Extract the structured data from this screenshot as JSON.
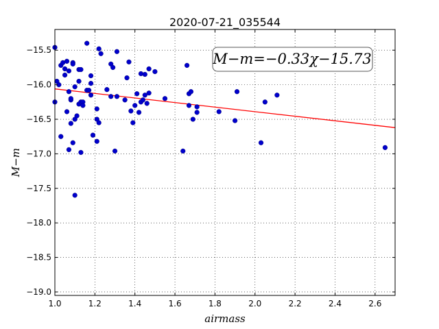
{
  "chart_data": {
    "type": "scatter",
    "title": "2020-07-21_035544",
    "xlabel": "airmass",
    "ylabel": "M−m",
    "xlim": [
      1.0,
      2.7
    ],
    "ylim": [
      -19.05,
      -15.2
    ],
    "x_ticks": [
      1.0,
      1.2,
      1.4,
      1.6,
      1.8,
      2.0,
      2.2,
      2.4,
      2.6
    ],
    "x_tick_labels": [
      "1.0",
      "1.2",
      "1.4",
      "1.6",
      "1.8",
      "2.0",
      "2.2",
      "2.4",
      "2.6"
    ],
    "y_ticks": [
      -15.5,
      -16.0,
      -16.5,
      -17.0,
      -17.5,
      -18.0,
      -18.5,
      -19.0
    ],
    "y_tick_labels": [
      "−15.5",
      "−16.0",
      "−16.5",
      "−17.0",
      "−17.5",
      "−18.0",
      "−18.5",
      "−19.0"
    ],
    "grid": true,
    "annotation": "M−m=−0.33χ−15.73",
    "fit": {
      "slope": -0.33,
      "intercept": -15.73,
      "color": "#ff0000"
    },
    "point_color": "#0000cc",
    "points": [
      [
        1.0,
        -15.46
      ],
      [
        1.0,
        -16.25
      ],
      [
        1.01,
        -15.95
      ],
      [
        1.02,
        -16.0
      ],
      [
        1.03,
        -15.72
      ],
      [
        1.03,
        -16.75
      ],
      [
        1.04,
        -15.68
      ],
      [
        1.05,
        -15.77
      ],
      [
        1.05,
        -15.86
      ],
      [
        1.06,
        -16.39
      ],
      [
        1.06,
        -15.66
      ],
      [
        1.07,
        -16.1
      ],
      [
        1.07,
        -16.94
      ],
      [
        1.07,
        -15.8
      ],
      [
        1.08,
        -16.22
      ],
      [
        1.08,
        -16.2
      ],
      [
        1.08,
        -16.56
      ],
      [
        1.09,
        -16.84
      ],
      [
        1.09,
        -15.68
      ],
      [
        1.09,
        -15.7
      ],
      [
        1.1,
        -16.03
      ],
      [
        1.1,
        -17.6
      ],
      [
        1.1,
        -16.5
      ],
      [
        1.11,
        -16.45
      ],
      [
        1.12,
        -15.78
      ],
      [
        1.12,
        -15.95
      ],
      [
        1.12,
        -16.28
      ],
      [
        1.13,
        -16.98
      ],
      [
        1.13,
        -15.78
      ],
      [
        1.13,
        -16.25
      ],
      [
        1.14,
        -16.25
      ],
      [
        1.14,
        -16.3
      ],
      [
        1.16,
        -15.4
      ],
      [
        1.16,
        -16.08
      ],
      [
        1.17,
        -16.08
      ],
      [
        1.18,
        -15.87
      ],
      [
        1.18,
        -15.98
      ],
      [
        1.18,
        -16.15
      ],
      [
        1.19,
        -16.73
      ],
      [
        1.21,
        -16.35
      ],
      [
        1.21,
        -16.5
      ],
      [
        1.21,
        -16.82
      ],
      [
        1.22,
        -16.55
      ],
      [
        1.22,
        -15.48
      ],
      [
        1.23,
        -15.55
      ],
      [
        1.26,
        -16.07
      ],
      [
        1.28,
        -15.7
      ],
      [
        1.28,
        -16.17
      ],
      [
        1.29,
        -15.75
      ],
      [
        1.3,
        -16.96
      ],
      [
        1.31,
        -15.52
      ],
      [
        1.31,
        -16.17
      ],
      [
        1.35,
        -16.22
      ],
      [
        1.36,
        -15.9
      ],
      [
        1.37,
        -15.67
      ],
      [
        1.38,
        -16.38
      ],
      [
        1.39,
        -16.55
      ],
      [
        1.4,
        -16.3
      ],
      [
        1.41,
        -16.13
      ],
      [
        1.42,
        -16.4
      ],
      [
        1.43,
        -15.84
      ],
      [
        1.43,
        -16.25
      ],
      [
        1.44,
        -16.22
      ],
      [
        1.45,
        -15.85
      ],
      [
        1.45,
        -16.15
      ],
      [
        1.46,
        -16.27
      ],
      [
        1.47,
        -15.77
      ],
      [
        1.47,
        -16.12
      ],
      [
        1.5,
        -15.81
      ],
      [
        1.55,
        -16.2
      ],
      [
        1.64,
        -16.96
      ],
      [
        1.66,
        -15.72
      ],
      [
        1.67,
        -16.3
      ],
      [
        1.67,
        -16.13
      ],
      [
        1.68,
        -16.1
      ],
      [
        1.69,
        -16.5
      ],
      [
        1.71,
        -16.32
      ],
      [
        1.71,
        -16.4
      ],
      [
        1.82,
        -16.39
      ],
      [
        1.9,
        -16.52
      ],
      [
        1.91,
        -16.1
      ],
      [
        2.03,
        -16.84
      ],
      [
        2.05,
        -16.25
      ],
      [
        2.11,
        -16.15
      ],
      [
        2.65,
        -16.91
      ]
    ]
  }
}
